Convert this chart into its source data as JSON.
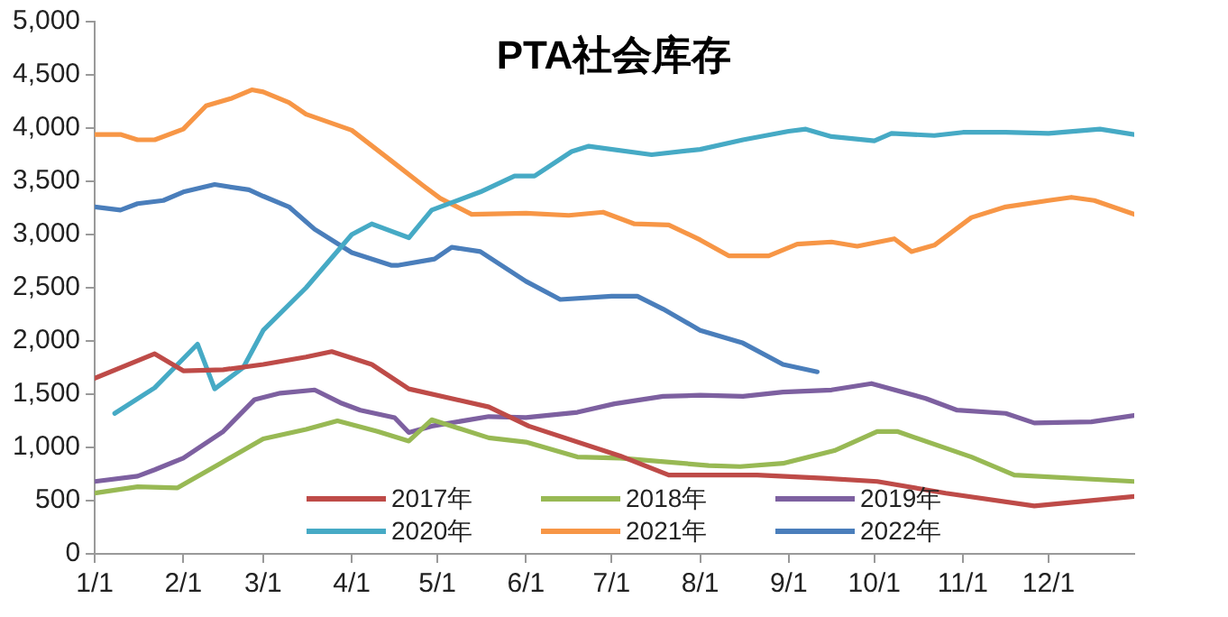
{
  "chart_data": {
    "type": "line",
    "title": "PTA社会库存",
    "legend": "bottom",
    "grid": false,
    "marker": "none",
    "line_style": "solid",
    "xlim": [
      "--01-01",
      "--12-31"
    ],
    "xticks": [
      {
        "value": "--01-01",
        "label": "1/1"
      },
      {
        "value": "--02-01",
        "label": "2/1"
      },
      {
        "value": "--03-01",
        "label": "3/1"
      },
      {
        "value": "--04-01",
        "label": "4/1"
      },
      {
        "value": "--05-01",
        "label": "5/1"
      },
      {
        "value": "--06-01",
        "label": "6/1"
      },
      {
        "value": "--07-01",
        "label": "7/1"
      },
      {
        "value": "--08-01",
        "label": "8/1"
      },
      {
        "value": "--09-01",
        "label": "9/1"
      },
      {
        "value": "--10-01",
        "label": "10/1"
      },
      {
        "value": "--11-01",
        "label": "11/1"
      },
      {
        "value": "--12-01",
        "label": "12/1"
      }
    ],
    "ylim": [
      0,
      5000
    ],
    "yticks": [
      {
        "value": 0,
        "label": "0"
      },
      {
        "value": 500,
        "label": "500"
      },
      {
        "value": 1000,
        "label": "1,000"
      },
      {
        "value": 1500,
        "label": "1,500"
      },
      {
        "value": 2000,
        "label": "2,000"
      },
      {
        "value": 2500,
        "label": "2,500"
      },
      {
        "value": 3000,
        "label": "3,000"
      },
      {
        "value": 3500,
        "label": "3,500"
      },
      {
        "value": 4000,
        "label": "4,000"
      },
      {
        "value": 4500,
        "label": "4,500"
      },
      {
        "value": 5000,
        "label": "5,000"
      }
    ],
    "series": [
      {
        "name": "2017年",
        "color": "#be4b48",
        "x": [
          "--01-01",
          "--01-22",
          "--02-01",
          "--02-15",
          "--03-01",
          "--03-16",
          "--03-25",
          "--04-08",
          "--04-21",
          "--05-19",
          "--06-02",
          "--07-04",
          "--07-21",
          "--08-21",
          "--09-13",
          "--10-02",
          "--10-26",
          "--11-26",
          "--12-31"
        ],
        "values": [
          1650,
          1880,
          1720,
          1730,
          1780,
          1850,
          1900,
          1780,
          1550,
          1380,
          1200,
          920,
          740,
          740,
          710,
          680,
          570,
          450,
          540
        ]
      },
      {
        "name": "2018年",
        "color": "#98b954",
        "x": [
          "--01-01",
          "--01-16",
          "--01-30",
          "--02-14",
          "--03-01",
          "--03-16",
          "--03-27",
          "--04-10",
          "--04-21",
          "--04-29",
          "--05-19",
          "--06-01",
          "--06-19",
          "--07-04",
          "--08-04",
          "--08-15",
          "--08-30",
          "--09-17",
          "--10-02",
          "--10-09",
          "--11-04",
          "--11-19",
          "--12-31"
        ],
        "values": [
          570,
          630,
          620,
          850,
          1080,
          1170,
          1250,
          1150,
          1060,
          1260,
          1090,
          1050,
          910,
          900,
          830,
          820,
          850,
          970,
          1150,
          1150,
          910,
          740,
          680
        ]
      },
      {
        "name": "2019年",
        "color": "#7d60a0",
        "x": [
          "--01-01",
          "--01-16",
          "--01-22",
          "--02-01",
          "--02-15",
          "--02-26",
          "--03-07",
          "--03-19",
          "--03-28",
          "--04-04",
          "--04-16",
          "--04-21",
          "--04-29",
          "--05-19",
          "--06-01",
          "--06-19",
          "--07-02",
          "--07-19",
          "--08-01",
          "--08-16",
          "--08-30",
          "--09-16",
          "--09-30",
          "--10-19",
          "--10-30",
          "--11-16",
          "--11-26",
          "--12-16",
          "--12-31"
        ],
        "values": [
          680,
          730,
          790,
          900,
          1150,
          1450,
          1510,
          1540,
          1420,
          1350,
          1280,
          1140,
          1200,
          1290,
          1280,
          1330,
          1410,
          1480,
          1490,
          1480,
          1520,
          1540,
          1600,
          1460,
          1350,
          1320,
          1230,
          1240,
          1300
        ]
      },
      {
        "name": "2020年",
        "color": "#46aac5",
        "x": [
          "--01-08",
          "--01-22",
          "--02-06",
          "--02-12",
          "--02-22",
          "--03-01",
          "--03-16",
          "--04-01",
          "--04-08",
          "--04-21",
          "--04-29",
          "--05-16",
          "--05-28",
          "--06-04",
          "--06-17",
          "--06-23",
          "--07-15",
          "--08-01",
          "--08-16",
          "--09-01",
          "--09-07",
          "--09-16",
          "--10-01",
          "--10-07",
          "--10-22",
          "--11-01",
          "--11-16",
          "--12-01",
          "--12-19",
          "--12-31"
        ],
        "values": [
          1320,
          1560,
          1970,
          1550,
          1750,
          2100,
          2500,
          3000,
          3100,
          2970,
          3230,
          3400,
          3550,
          3550,
          3780,
          3830,
          3750,
          3800,
          3890,
          3970,
          3990,
          3920,
          3880,
          3950,
          3930,
          3960,
          3960,
          3950,
          3990,
          3940
        ]
      },
      {
        "name": "2021年",
        "color": "#f79646",
        "x": [
          "--01-01",
          "--01-10",
          "--01-16",
          "--01-22",
          "--02-01",
          "--02-09",
          "--02-18",
          "--02-25",
          "--03-01",
          "--03-10",
          "--03-16",
          "--04-01",
          "--04-15",
          "--04-26",
          "--05-02",
          "--05-13",
          "--06-01",
          "--06-16",
          "--06-28",
          "--07-09",
          "--07-21",
          "--08-01",
          "--08-11",
          "--08-25",
          "--09-04",
          "--09-16",
          "--09-25",
          "--10-08",
          "--10-14",
          "--10-22",
          "--11-04",
          "--11-16",
          "--12-01",
          "--12-09",
          "--12-17",
          "--12-31"
        ],
        "values": [
          3940,
          3940,
          3890,
          3890,
          3990,
          4210,
          4280,
          4360,
          4340,
          4240,
          4130,
          3980,
          3690,
          3460,
          3340,
          3190,
          3200,
          3180,
          3210,
          3100,
          3090,
          2950,
          2800,
          2800,
          2910,
          2930,
          2890,
          2960,
          2840,
          2900,
          3160,
          3260,
          3320,
          3350,
          3320,
          3190
        ]
      },
      {
        "name": "2022年",
        "color": "#4a7ebb",
        "x": [
          "--01-01",
          "--01-10",
          "--01-16",
          "--01-25",
          "--02-01",
          "--02-12",
          "--02-24",
          "--03-01",
          "--03-10",
          "--03-19",
          "--04-01",
          "--04-15",
          "--04-17",
          "--04-30",
          "--05-06",
          "--05-16",
          "--06-01",
          "--06-13",
          "--07-01",
          "--07-10",
          "--07-19",
          "--08-01",
          "--08-16",
          "--08-30",
          "--09-11"
        ],
        "values": [
          3260,
          3230,
          3290,
          3320,
          3400,
          3470,
          3420,
          3360,
          3260,
          3050,
          2830,
          2710,
          2710,
          2770,
          2880,
          2840,
          2560,
          2390,
          2420,
          2420,
          2300,
          2100,
          1980,
          1780,
          1710
        ]
      }
    ]
  }
}
